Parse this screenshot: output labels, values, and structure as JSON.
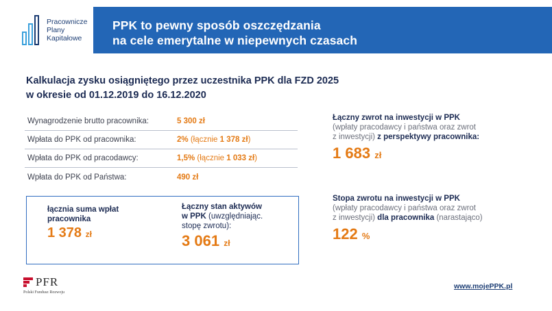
{
  "logo": {
    "lines": [
      "Pracownicze",
      "Plany",
      "Kapitałowe"
    ]
  },
  "banner": {
    "line1": "PPK to pewny sposób oszczędzania",
    "line2": "na cele emerytalne w niepewnych czasach"
  },
  "calc": {
    "title_line1": "Kalkulacja zysku osiągniętego przez uczestnika PPK dla FZD 2025",
    "title_line2": "w okresie od 01.12.2019 do 16.12.2020"
  },
  "table": {
    "rows": [
      {
        "label": "Wynagrodzenie brutto pracownika:",
        "value": "5 300 zł"
      },
      {
        "label": "Wpłata do PPK od pracownika:",
        "value": "2%",
        "paren_open": " (łącznie ",
        "paren_value": "1 378 zł",
        "paren_close": ")"
      },
      {
        "label": "Wpłata do PPK od pracodawcy:",
        "value": "1,5%",
        "paren_open": " (łącznie ",
        "paren_value": "1 033 zł",
        "paren_close": ")"
      },
      {
        "label": "Wpłata do PPK od Państwa:",
        "value": "490 zł"
      }
    ]
  },
  "summary": {
    "left_label_line1": "łącznia suma wpłat",
    "left_label_line2": "pracownika",
    "left_value": "1 378",
    "left_unit": "zł",
    "right_label_line1": "Łączny stan aktywów",
    "right_label_bold": "w PPK",
    "right_label_thin1": " (uwzględniając.",
    "right_label_thin2": "stopę zwrotu):",
    "right_value": "3 061",
    "right_unit": "zł"
  },
  "return1": {
    "title": "Łączny zwrot na inwestycji w PPK",
    "sub1": "(wpłaty pracodawcy i państwa oraz zwrot",
    "sub2_thin": "z inwestycji)",
    "sub2_bold": " z perspektywy pracownika:",
    "value": "1 683",
    "unit": "zł"
  },
  "return2": {
    "title": "Stopa zwrotu na inwestycji w PPK",
    "sub1": "(wpłaty pracodawcy i państwa oraz zwrot",
    "sub2_thin": "z inwestycji)",
    "sub2_bold": " dla pracownika",
    "sub2_tail": " (narastająco)",
    "value": "122",
    "unit": "%"
  },
  "pfr": {
    "name": "PFR",
    "sub": "Polski Fundusz Rozwoju"
  },
  "url": "www.mojePPK.pl",
  "colors": {
    "banner": "#2366b6",
    "accent": "#e47a14",
    "navy": "#1b2a52",
    "logo_bars": "#3aa0dc"
  }
}
